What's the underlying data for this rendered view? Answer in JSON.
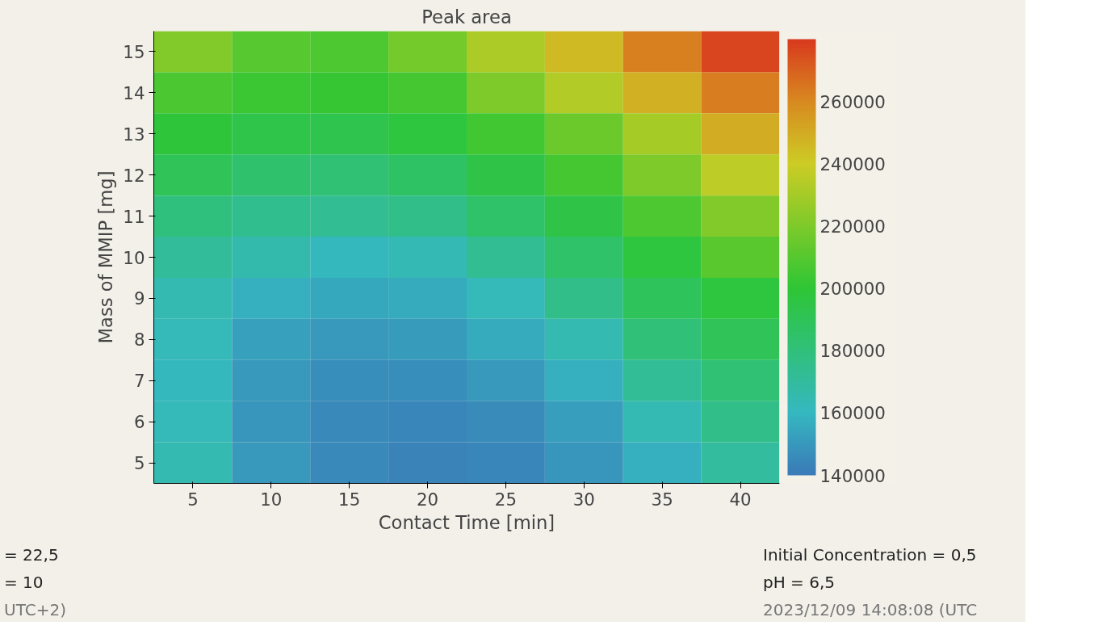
{
  "chart_data": {
    "type": "heatmap",
    "title": "Peak area",
    "xlabel": "Contact Time [min]",
    "ylabel": "Mass of MMIP [mg]",
    "categories": [
      "5",
      "10",
      "15",
      "20",
      "25",
      "30",
      "35",
      "40"
    ],
    "y_categories": [
      "15",
      "14",
      "13",
      "12",
      "11",
      "10",
      "9",
      "8",
      "7",
      "6",
      "5"
    ],
    "cells": [
      [
        221000,
        210000,
        208000,
        218000,
        232000,
        245000,
        262000,
        277000
      ],
      [
        207000,
        203000,
        202000,
        206000,
        220000,
        233000,
        248000,
        263000
      ],
      [
        198000,
        194000,
        193000,
        197000,
        205000,
        216000,
        230000,
        249000
      ],
      [
        190000,
        184000,
        182000,
        186000,
        195000,
        206000,
        220000,
        236000
      ],
      [
        179000,
        174000,
        173000,
        176000,
        185000,
        195000,
        208000,
        221000
      ],
      [
        171000,
        166000,
        161000,
        163000,
        173000,
        185000,
        197000,
        211000
      ],
      [
        165000,
        158000,
        155000,
        156000,
        162000,
        176000,
        189000,
        197000
      ],
      [
        162000,
        153000,
        150000,
        151000,
        156000,
        165000,
        181000,
        190000
      ],
      [
        161000,
        150000,
        147000,
        147000,
        150000,
        158000,
        172000,
        182000
      ],
      [
        162000,
        149000,
        145000,
        144000,
        146000,
        152000,
        164000,
        176000
      ],
      [
        165000,
        150000,
        145000,
        143000,
        144000,
        149000,
        158000,
        170000
      ]
    ],
    "clim": [
      140000,
      280000
    ],
    "cticks": [
      140000,
      160000,
      180000,
      200000,
      220000,
      240000,
      260000
    ],
    "annotations": [
      "= 22,5",
      "= 10",
      "UTC+2)",
      "Initial Concentration = 0,5",
      "pH = 6,5",
      "2023/12/09 14:08:08 (UTC"
    ]
  }
}
